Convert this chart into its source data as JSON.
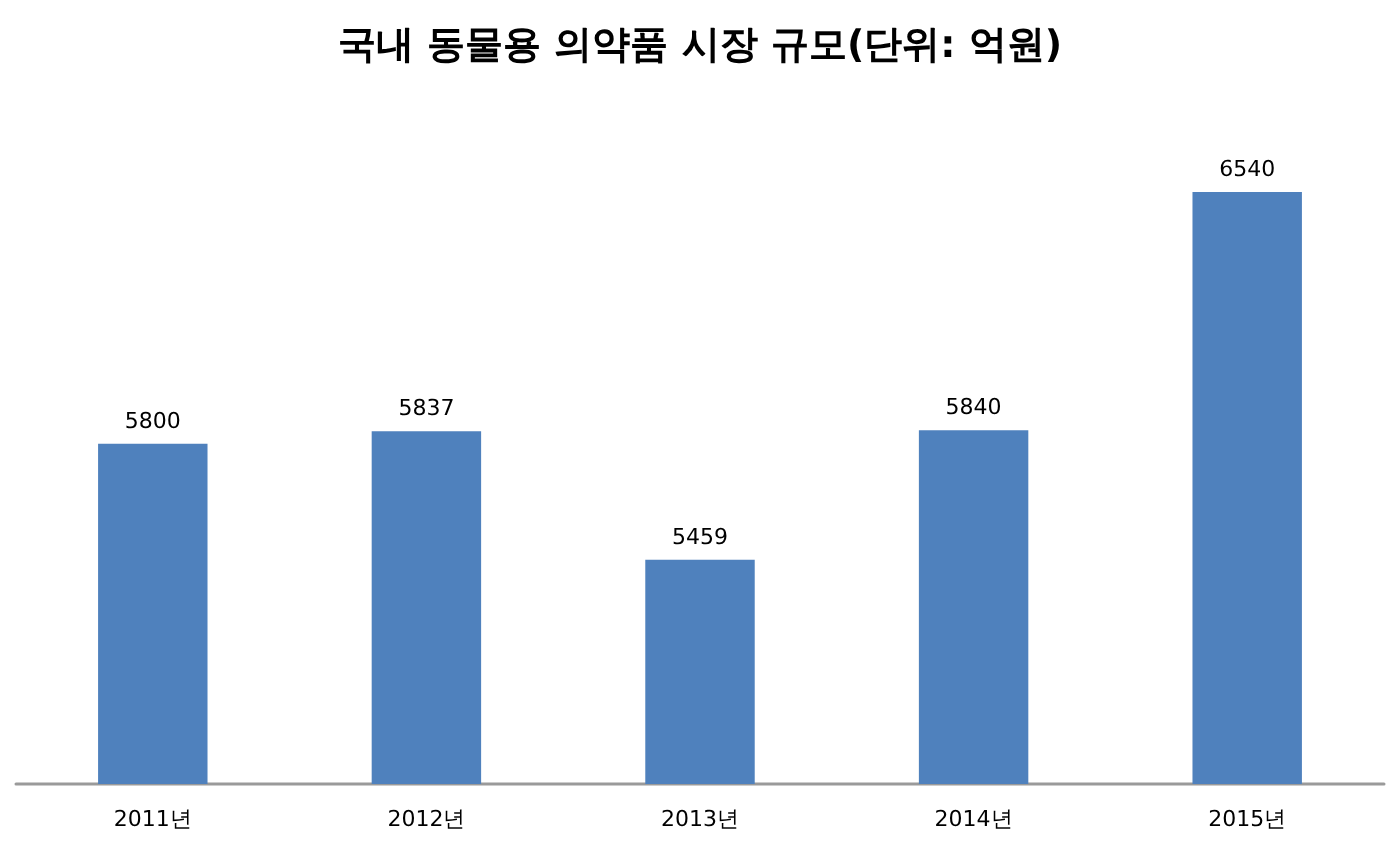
{
  "chart_data": {
    "type": "bar",
    "title": "국내 동물용 의약품 시장 규모(단위: 억원)",
    "categories": [
      "2011년",
      "2012년",
      "2013년",
      "2014년",
      "2015년"
    ],
    "values": [
      5800,
      5837,
      5459,
      5840,
      6540
    ],
    "color": "#4f81bd",
    "ylim": [
      4800,
      6540
    ],
    "data_labels": true,
    "tick_labels": "x",
    "grid": false
  }
}
